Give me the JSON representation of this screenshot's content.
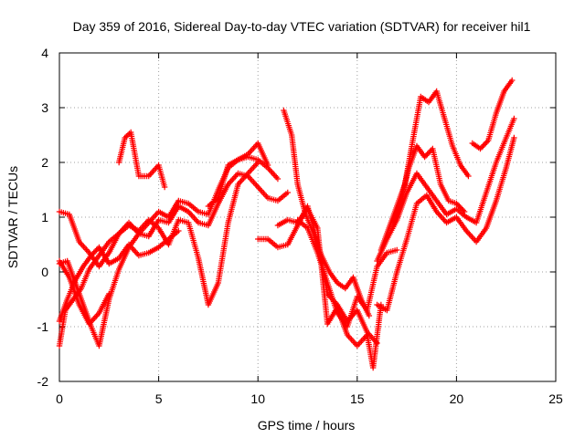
{
  "chart_data": {
    "type": "scatter",
    "title": "Day 359 of 2016, Sidereal Day-to-day VTEC variation (SDTVAR) for receiver hil1",
    "xlabel": "GPS time / hours",
    "ylabel": "SDTVAR / TECUs",
    "xlim": [
      0,
      25
    ],
    "ylim": [
      -2,
      4
    ],
    "xticks": [
      "0",
      "5",
      "10",
      "15",
      "20",
      "25"
    ],
    "yticks": [
      "-2",
      "-1",
      "0",
      "1",
      "2",
      "3",
      "4"
    ],
    "grid": true,
    "marker": "+",
    "color": "#ff0000",
    "series": [
      {
        "x": [
          0.0,
          0.5,
          1.0,
          1.5,
          2.0,
          2.5,
          3.0,
          3.5,
          4.0,
          4.5,
          5.0,
          5.5,
          6.0,
          6.5,
          7.0,
          7.5,
          8.0,
          8.5,
          9.0,
          9.5,
          10.0,
          10.5,
          11.0
        ],
        "y": [
          1.1,
          1.05,
          0.55,
          0.35,
          0.1,
          0.35,
          0.7,
          0.9,
          0.7,
          0.9,
          1.1,
          1.0,
          1.3,
          1.25,
          1.1,
          1.05,
          1.5,
          1.9,
          2.05,
          2.1,
          2.05,
          1.9,
          1.7
        ]
      },
      {
        "x": [
          0.0,
          0.4,
          0.8,
          1.2,
          1.6,
          2.0,
          2.5,
          3.0,
          3.5,
          4.0,
          4.5,
          5.0,
          5.5,
          6.0,
          6.5,
          7.0,
          7.5,
          8.0,
          8.5,
          9.0,
          9.5,
          10.0,
          10.5,
          11.0,
          11.5
        ],
        "y": [
          0.15,
          0.2,
          -0.2,
          -0.6,
          -1.0,
          -1.35,
          -0.5,
          0.05,
          0.45,
          0.7,
          0.65,
          0.95,
          0.9,
          1.2,
          1.1,
          0.9,
          0.85,
          1.25,
          1.6,
          1.8,
          1.75,
          1.55,
          1.35,
          1.3,
          1.45
        ]
      },
      {
        "x": [
          0.0,
          0.3,
          0.7,
          1.1,
          1.5,
          2.0,
          2.5,
          3.0,
          3.5,
          4.0,
          4.5,
          5.0,
          5.5,
          6.0,
          6.5,
          7.0,
          7.5,
          8.0,
          8.5,
          9.0,
          9.5,
          10.0
        ],
        "y": [
          -1.35,
          -0.7,
          -0.5,
          -0.3,
          0.05,
          0.3,
          0.55,
          0.7,
          0.85,
          0.75,
          0.95,
          0.8,
          0.5,
          0.95,
          0.9,
          0.25,
          -0.6,
          -0.2,
          0.9,
          1.6,
          1.8,
          2.0
        ]
      },
      {
        "x": [
          0.0,
          0.4,
          0.8,
          1.2,
          1.6,
          2.0,
          2.5,
          3.0,
          3.5,
          4.0,
          4.5,
          5.0,
          5.5,
          6.0
        ],
        "y": [
          -0.9,
          -0.5,
          -0.15,
          0.1,
          0.3,
          0.45,
          0.15,
          0.25,
          0.5,
          0.3,
          0.35,
          0.45,
          0.6,
          0.75
        ]
      },
      {
        "x": [
          0.0,
          0.5,
          1.0,
          1.5,
          2.0,
          2.5
        ],
        "y": [
          0.2,
          -0.1,
          -0.6,
          -0.95,
          -0.75,
          -0.4
        ]
      },
      {
        "x": [
          3.0,
          3.3,
          3.6,
          4.0,
          4.5,
          5.0,
          5.3
        ],
        "y": [
          2.0,
          2.45,
          2.55,
          1.75,
          1.75,
          1.95,
          1.55
        ]
      },
      {
        "x": [
          7.5,
          8.0,
          8.5,
          9.0,
          9.5,
          10.0,
          10.5
        ],
        "y": [
          1.2,
          1.35,
          1.95,
          2.05,
          2.15,
          2.35,
          1.95
        ]
      },
      {
        "x": [
          11.3,
          11.7,
          12.0,
          12.4,
          12.8,
          13.2,
          13.6,
          14.0,
          14.4,
          14.8,
          15.2,
          15.6
        ],
        "y": [
          2.95,
          2.5,
          1.6,
          1.05,
          0.7,
          0.3,
          0.0,
          -0.2,
          -0.3,
          -0.1,
          -0.5,
          -0.8
        ]
      },
      {
        "x": [
          10.0,
          10.5,
          11.0,
          11.5,
          12.0,
          12.5,
          13.0,
          13.5,
          14.0,
          14.5,
          15.0,
          15.5,
          16.0
        ],
        "y": [
          0.6,
          0.6,
          0.45,
          0.5,
          0.85,
          1.2,
          0.55,
          -0.4,
          -0.6,
          -0.9,
          -0.7,
          -1.1,
          -1.3
        ]
      },
      {
        "x": [
          11.0,
          11.5,
          12.0,
          12.5,
          13.0,
          13.5,
          14.0,
          14.5,
          15.0,
          15.5,
          15.8,
          16.2
        ],
        "y": [
          0.85,
          0.95,
          0.9,
          1.15,
          0.8,
          -0.95,
          -0.65,
          -1.15,
          -1.35,
          -1.15,
          -1.75,
          -0.6
        ]
      },
      {
        "x": [
          12.0,
          12.5,
          13.0,
          13.5,
          14.0,
          14.5,
          15.0,
          15.5,
          16.0,
          16.5,
          17.0
        ],
        "y": [
          0.95,
          0.8,
          0.35,
          -0.2,
          -0.75,
          -1.0,
          -0.45,
          -0.7,
          0.1,
          0.35,
          0.4
        ]
      },
      {
        "x": [
          16.0,
          16.5,
          17.0,
          17.5,
          18.0,
          18.5,
          19.0,
          19.5,
          20.0,
          20.5,
          21.0,
          21.5,
          22.0,
          22.5,
          22.9
        ],
        "y": [
          -0.6,
          -0.7,
          0.0,
          0.6,
          1.25,
          1.4,
          1.1,
          0.9,
          1.0,
          0.75,
          0.55,
          0.8,
          1.3,
          1.9,
          2.45
        ]
      },
      {
        "x": [
          16.0,
          16.5,
          17.0,
          17.5,
          18.0,
          18.5,
          19.0,
          19.5,
          20.0,
          20.5,
          21.0,
          21.5,
          22.0,
          22.5,
          22.9
        ],
        "y": [
          0.2,
          0.6,
          0.95,
          1.45,
          1.8,
          1.55,
          1.3,
          1.05,
          1.15,
          1.0,
          0.9,
          1.45,
          2.0,
          2.45,
          2.8
        ]
      },
      {
        "x": [
          16.2,
          16.6,
          17.0,
          17.4,
          17.8,
          18.2,
          18.6,
          19.0,
          19.4,
          19.8,
          20.2,
          20.6
        ],
        "y": [
          0.4,
          0.8,
          1.2,
          1.6,
          2.4,
          3.2,
          3.1,
          3.3,
          2.8,
          2.3,
          1.95,
          1.75
        ]
      },
      {
        "x": [
          16.8,
          17.2,
          17.6,
          18.0,
          18.4,
          18.8,
          19.2,
          19.6,
          20.0,
          20.4
        ],
        "y": [
          0.9,
          1.3,
          1.9,
          2.3,
          2.1,
          2.25,
          1.6,
          1.3,
          1.25,
          1.1
        ]
      },
      {
        "x": [
          20.8,
          21.2,
          21.6,
          22.0,
          22.4,
          22.8
        ],
        "y": [
          2.35,
          2.25,
          2.4,
          2.9,
          3.3,
          3.5
        ]
      }
    ]
  }
}
